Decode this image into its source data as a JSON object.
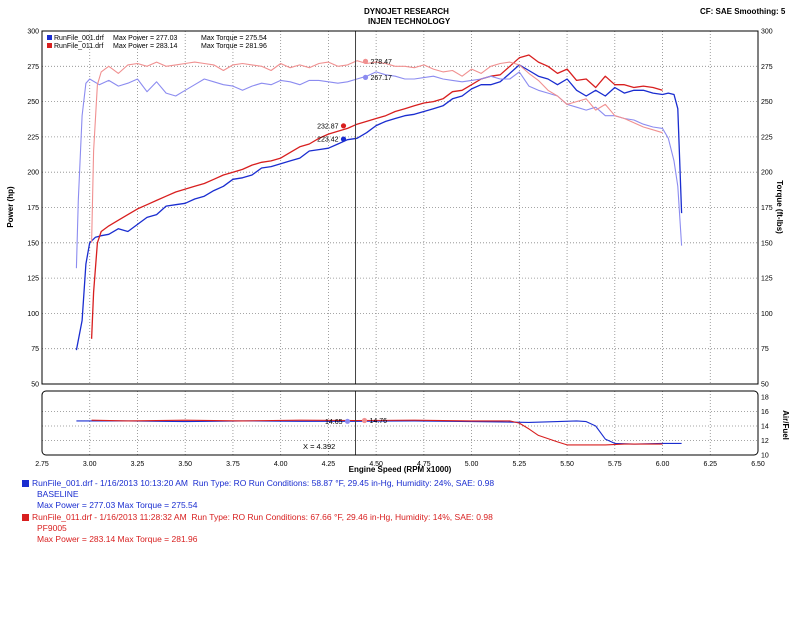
{
  "header": {
    "title_line1": "DYNOJET RESEARCH",
    "title_line2": "INJEN TECHNOLOGY",
    "corner": "CF: SAE  Smoothing: 5"
  },
  "runs": [
    {
      "file": "RunFile_001.drf - 1/16/2013 10:13:20 AM",
      "conditions": "Run Type: RO  Run Conditions: 58.87 °F, 29.45 in-Hg,  Humidity:  24%, SAE: 0.98",
      "name": "BASELINE",
      "summary": "Max Power = 277.03  Max Torque = 275.54",
      "legend_file": "RunFile_001.drf",
      "legend_power": "Max Power = 277.03",
      "legend_torque": "Max Torque = 275.54",
      "color": "#1a2dd0",
      "light_color": "#8c8cf0"
    },
    {
      "file": "RunFile_011.drf - 1/16/2013 11:28:32 AM",
      "conditions": "Run Type: RO  Run Conditions: 67.66 °F, 29.46 in-Hg,  Humidity:  14%, SAE: 0.98",
      "name": "PF9005",
      "summary": "Max Power = 283.14  Max Torque = 281.96",
      "legend_file": "RunFile_011.drf",
      "legend_power": "Max Power = 283.14",
      "legend_torque": "Max Torque = 281.96",
      "color": "#d81f1f",
      "light_color": "#f09090"
    }
  ],
  "chart_data": {
    "type": "line",
    "xlabel": "Engine Speed (RPM x1000)",
    "ylabel_left": "Power (hp)",
    "ylabel_right": "Torque (ft-lbs)",
    "ylabel_afr": "Air/Fuel",
    "xlim": [
      2.75,
      6.5
    ],
    "ylim_power": [
      50,
      300
    ],
    "ylim_torque": [
      50,
      300
    ],
    "ylim_afr": [
      10,
      18
    ],
    "x_ticks": [
      "2.75",
      "3.00",
      "3.25",
      "3.50",
      "3.75",
      "4.00",
      "4.25",
      "4.50",
      "4.75",
      "5.00",
      "5.25",
      "5.50",
      "5.75",
      "6.00",
      "6.25",
      "6.50"
    ],
    "y_ticks": [
      "50",
      "75",
      "100",
      "125",
      "150",
      "175",
      "200",
      "225",
      "250",
      "275",
      "300"
    ],
    "afr_ticks": [
      "10",
      "12",
      "14",
      "16",
      "18"
    ],
    "grid": true,
    "cursor": {
      "x": 4.392,
      "label": "X = 4.392"
    },
    "cursor_values": {
      "torque_red": "278.47",
      "torque_blue": "267.17",
      "power_red": "232.87",
      "power_blue": "223.42",
      "afr_blue": "14.65",
      "afr_red": "14.76"
    },
    "series": [
      {
        "name": "RunFile_001.drf",
        "kind": "power",
        "x": [
          2.93,
          2.96,
          2.98,
          3.0,
          3.03,
          3.06,
          3.1,
          3.15,
          3.2,
          3.25,
          3.3,
          3.35,
          3.4,
          3.45,
          3.5,
          3.55,
          3.6,
          3.65,
          3.7,
          3.75,
          3.8,
          3.85,
          3.9,
          3.95,
          4.0,
          4.05,
          4.1,
          4.15,
          4.2,
          4.25,
          4.3,
          4.35,
          4.4,
          4.45,
          4.5,
          4.55,
          4.6,
          4.65,
          4.7,
          4.75,
          4.8,
          4.85,
          4.9,
          4.95,
          5.0,
          5.05,
          5.1,
          5.15,
          5.2,
          5.25,
          5.3,
          5.35,
          5.4,
          5.45,
          5.5,
          5.55,
          5.6,
          5.65,
          5.7,
          5.75,
          5.8,
          5.85,
          5.9,
          5.95,
          6.0,
          6.03,
          6.06,
          6.08,
          6.1
        ],
        "y": [
          74,
          95,
          135,
          150,
          154,
          155,
          156,
          160,
          158,
          163,
          168,
          170,
          176,
          177,
          178,
          181,
          183,
          187,
          190,
          195,
          196,
          198,
          203,
          204,
          206,
          208,
          210,
          215,
          216,
          217,
          220,
          223,
          224,
          228,
          233,
          236,
          238,
          240,
          241,
          243,
          245,
          247,
          252,
          254,
          259,
          262,
          262,
          264,
          270,
          276,
          272,
          268,
          266,
          262,
          266,
          258,
          254,
          258,
          254,
          260,
          256,
          258,
          258,
          256,
          255,
          256,
          255,
          245,
          171
        ]
      },
      {
        "name": "RunFile_011.drf",
        "kind": "power",
        "x": [
          3.01,
          3.02,
          3.04,
          3.06,
          3.1,
          3.15,
          3.2,
          3.25,
          3.3,
          3.35,
          3.4,
          3.45,
          3.5,
          3.55,
          3.6,
          3.65,
          3.7,
          3.75,
          3.8,
          3.85,
          3.9,
          3.95,
          4.0,
          4.05,
          4.1,
          4.15,
          4.2,
          4.25,
          4.3,
          4.35,
          4.4,
          4.45,
          4.5,
          4.55,
          4.6,
          4.65,
          4.7,
          4.75,
          4.8,
          4.85,
          4.9,
          4.95,
          5.0,
          5.05,
          5.1,
          5.15,
          5.2,
          5.25,
          5.3,
          5.35,
          5.4,
          5.45,
          5.5,
          5.55,
          5.6,
          5.65,
          5.7,
          5.75,
          5.8,
          5.85,
          5.9,
          5.95,
          6.0
        ],
        "y": [
          82,
          115,
          150,
          158,
          162,
          166,
          170,
          174,
          177,
          180,
          183,
          186,
          188,
          190,
          192,
          195,
          198,
          200,
          202,
          205,
          207,
          208,
          210,
          214,
          218,
          220,
          224,
          227,
          229,
          231,
          234,
          236,
          238,
          240,
          243,
          245,
          247,
          249,
          250,
          252,
          257,
          258,
          262,
          266,
          268,
          269,
          275,
          281,
          283,
          278,
          275,
          270,
          273,
          265,
          266,
          260,
          268,
          262,
          262,
          260,
          261,
          260,
          258
        ]
      },
      {
        "name": "RunFile_001.drf",
        "kind": "torque",
        "x": [
          2.93,
          2.94,
          2.96,
          2.98,
          3.0,
          3.05,
          3.1,
          3.15,
          3.2,
          3.25,
          3.3,
          3.35,
          3.4,
          3.45,
          3.5,
          3.55,
          3.6,
          3.65,
          3.7,
          3.75,
          3.8,
          3.85,
          3.9,
          3.95,
          4.0,
          4.05,
          4.1,
          4.15,
          4.2,
          4.25,
          4.3,
          4.35,
          4.4,
          4.45,
          4.5,
          4.55,
          4.6,
          4.65,
          4.7,
          4.75,
          4.8,
          4.85,
          4.9,
          4.95,
          5.0,
          5.05,
          5.1,
          5.15,
          5.2,
          5.25,
          5.3,
          5.35,
          5.4,
          5.45,
          5.5,
          5.55,
          5.6,
          5.65,
          5.7,
          5.75,
          5.8,
          5.85,
          5.9,
          5.95,
          6.0,
          6.03,
          6.06,
          6.08,
          6.1
        ],
        "y": [
          132,
          180,
          240,
          263,
          266,
          262,
          265,
          261,
          263,
          266,
          257,
          264,
          256,
          254,
          258,
          262,
          266,
          264,
          262,
          261,
          258,
          261,
          263,
          262,
          265,
          264,
          262,
          265,
          265,
          264,
          263,
          264,
          266,
          268,
          271,
          269,
          268,
          266,
          266,
          267,
          268,
          266,
          265,
          264,
          265,
          266,
          268,
          266,
          266,
          271,
          261,
          258,
          256,
          254,
          248,
          246,
          244,
          246,
          240,
          240,
          238,
          237,
          234,
          232,
          231,
          224,
          208,
          190,
          148
        ]
      },
      {
        "name": "RunFile_011.drf",
        "kind": "torque",
        "x": [
          3.01,
          3.02,
          3.04,
          3.06,
          3.08,
          3.1,
          3.15,
          3.2,
          3.25,
          3.3,
          3.35,
          3.4,
          3.45,
          3.5,
          3.55,
          3.6,
          3.65,
          3.7,
          3.75,
          3.8,
          3.85,
          3.9,
          3.95,
          4.0,
          4.05,
          4.1,
          4.15,
          4.2,
          4.25,
          4.3,
          4.35,
          4.4,
          4.45,
          4.5,
          4.55,
          4.6,
          4.65,
          4.7,
          4.75,
          4.8,
          4.85,
          4.9,
          4.95,
          5.0,
          5.05,
          5.1,
          5.15,
          5.2,
          5.25,
          5.3,
          5.35,
          5.4,
          5.45,
          5.5,
          5.55,
          5.6,
          5.65,
          5.7,
          5.75,
          5.8,
          5.85,
          5.9,
          5.95,
          6.0
        ],
        "y": [
          150,
          215,
          262,
          271,
          273,
          275,
          270,
          276,
          277,
          275,
          278,
          275,
          276,
          277,
          278,
          277,
          276,
          272,
          276,
          277,
          276,
          275,
          272,
          277,
          274,
          276,
          274,
          277,
          278,
          275,
          276,
          279,
          277,
          278,
          277,
          275,
          275,
          274,
          276,
          273,
          271,
          272,
          268,
          273,
          270,
          275,
          277,
          278,
          276,
          270,
          265,
          258,
          254,
          248,
          250,
          252,
          244,
          248,
          240,
          238,
          235,
          232,
          230,
          228
        ]
      },
      {
        "name": "RunFile_001.drf",
        "kind": "afr",
        "x": [
          2.93,
          3.2,
          3.5,
          3.8,
          4.1,
          4.392,
          4.7,
          5.0,
          5.3,
          5.45,
          5.55,
          5.6,
          5.65,
          5.7,
          5.75,
          5.85,
          6.0,
          6.1
        ],
        "y": [
          14.7,
          14.7,
          14.6,
          14.7,
          14.65,
          14.65,
          14.7,
          14.6,
          14.5,
          14.6,
          14.7,
          14.6,
          14.0,
          12.2,
          11.6,
          11.5,
          11.6,
          11.6
        ]
      },
      {
        "name": "RunFile_011.drf",
        "kind": "afr",
        "x": [
          3.01,
          3.2,
          3.5,
          3.8,
          4.1,
          4.392,
          4.7,
          5.0,
          5.2,
          5.25,
          5.3,
          5.35,
          5.45,
          5.5,
          5.6,
          5.7,
          5.8,
          6.0
        ],
        "y": [
          14.8,
          14.7,
          14.8,
          14.7,
          14.8,
          14.76,
          14.8,
          14.7,
          14.7,
          14.4,
          13.6,
          12.7,
          11.8,
          11.4,
          11.4,
          11.4,
          11.5,
          11.5
        ]
      }
    ]
  }
}
